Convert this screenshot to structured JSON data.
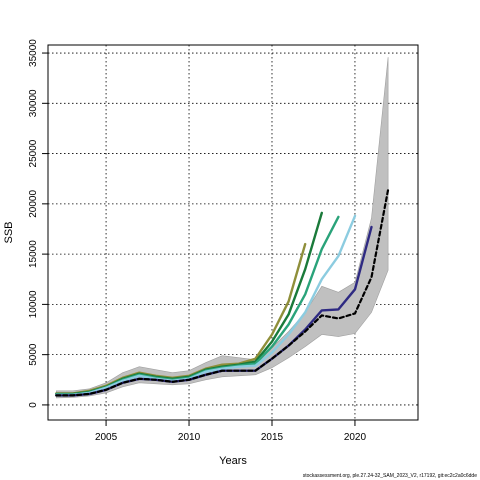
{
  "chart_data": {
    "type": "line",
    "xlabel": "Years",
    "ylabel": "SSB",
    "xlim": [
      2001.5,
      2023.8
    ],
    "ylim": [
      -1500,
      35800
    ],
    "x_ticks": [
      2005,
      2010,
      2015,
      2020
    ],
    "y_ticks": [
      0,
      5000,
      10000,
      15000,
      20000,
      25000,
      30000,
      35000
    ],
    "grid": true,
    "footer": "stockassessment.org, ple.27.24-32_SAM_2023_V2, r17192, git:ec2c2a0c6dde",
    "colors": {
      "band": "#c0c0c0",
      "band_edge": "#a0a0a0",
      "retro_2017": "#8f8f3a",
      "retro_2018": "#1a7a3a",
      "retro_2019": "#2aa37a",
      "retro_2020": "#8ccce0",
      "retro_2021": "#2e2a82",
      "current": "#000000"
    },
    "confidence_band": {
      "x": [
        2002,
        2003,
        2004,
        2005,
        2006,
        2007,
        2008,
        2009,
        2010,
        2011,
        2012,
        2013,
        2014,
        2015,
        2016,
        2017,
        2018,
        2019,
        2020,
        2021,
        2022
      ],
      "lower": [
        700,
        750,
        900,
        1200,
        1800,
        2200,
        2100,
        2000,
        2100,
        2500,
        2800,
        2900,
        3000,
        3700,
        4700,
        5800,
        7000,
        6800,
        7100,
        9200,
        13400
      ],
      "upper": [
        1400,
        1400,
        1600,
        2200,
        3200,
        3800,
        3500,
        3200,
        3400,
        4200,
        4900,
        4700,
        4500,
        5700,
        7300,
        9200,
        11800,
        11200,
        12200,
        18600,
        34600
      ]
    },
    "series": [
      {
        "x": [
          2002,
          2003,
          2004,
          2005,
          2006,
          2007,
          2008,
          2009,
          2010,
          2011,
          2012,
          2013,
          2014,
          2015,
          2016,
          2017
        ],
        "values": [
          1150,
          1150,
          1400,
          1900,
          2700,
          3200,
          2900,
          2700,
          2900,
          3600,
          4000,
          4100,
          4600,
          7000,
          10300,
          16000
        ],
        "color_key": "retro_2017"
      },
      {
        "x": [
          2002,
          2003,
          2004,
          2005,
          2006,
          2007,
          2008,
          2009,
          2010,
          2011,
          2012,
          2013,
          2014,
          2015,
          2016,
          2017,
          2018
        ],
        "values": [
          1100,
          1100,
          1300,
          1800,
          2600,
          3100,
          2800,
          2600,
          2800,
          3500,
          3800,
          4000,
          4300,
          6300,
          9000,
          13500,
          19100
        ],
        "color_key": "retro_2018"
      },
      {
        "x": [
          2002,
          2003,
          2004,
          2005,
          2006,
          2007,
          2008,
          2009,
          2010,
          2011,
          2012,
          2013,
          2014,
          2015,
          2016,
          2017,
          2018,
          2019
        ],
        "values": [
          1050,
          1050,
          1250,
          1750,
          2500,
          3000,
          2700,
          2500,
          2700,
          3400,
          3700,
          3900,
          4100,
          5800,
          8000,
          11000,
          15500,
          18700
        ],
        "color_key": "retro_2019"
      },
      {
        "x": [
          2002,
          2003,
          2004,
          2005,
          2006,
          2007,
          2008,
          2009,
          2010,
          2011,
          2012,
          2013,
          2014,
          2015,
          2016,
          2017,
          2018,
          2019,
          2020
        ],
        "values": [
          1000,
          1000,
          1200,
          1700,
          2400,
          2900,
          2600,
          2400,
          2600,
          3300,
          3600,
          3800,
          3900,
          5200,
          7000,
          9200,
          12500,
          14800,
          18800
        ],
        "color_key": "retro_2020"
      },
      {
        "x": [
          2002,
          2003,
          2004,
          2005,
          2006,
          2007,
          2008,
          2009,
          2010,
          2011,
          2012,
          2013,
          2014,
          2015,
          2016,
          2017,
          2018,
          2019,
          2020,
          2021
        ],
        "values": [
          950,
          950,
          1100,
          1500,
          2200,
          2600,
          2500,
          2300,
          2500,
          3000,
          3400,
          3400,
          3400,
          4600,
          5900,
          7500,
          9400,
          9500,
          11500,
          17700
        ],
        "color_key": "retro_2021"
      },
      {
        "x": [
          2002,
          2003,
          2004,
          2005,
          2006,
          2007,
          2008,
          2009,
          2010,
          2011,
          2012,
          2013,
          2014,
          2015,
          2016,
          2017,
          2018,
          2019,
          2020,
          2021,
          2022
        ],
        "values": [
          950,
          950,
          1100,
          1500,
          2200,
          2600,
          2500,
          2300,
          2500,
          3000,
          3400,
          3400,
          3400,
          4600,
          5900,
          7300,
          8900,
          8600,
          9100,
          12700,
          21400
        ],
        "color_key": "current",
        "dashed": true
      }
    ]
  }
}
